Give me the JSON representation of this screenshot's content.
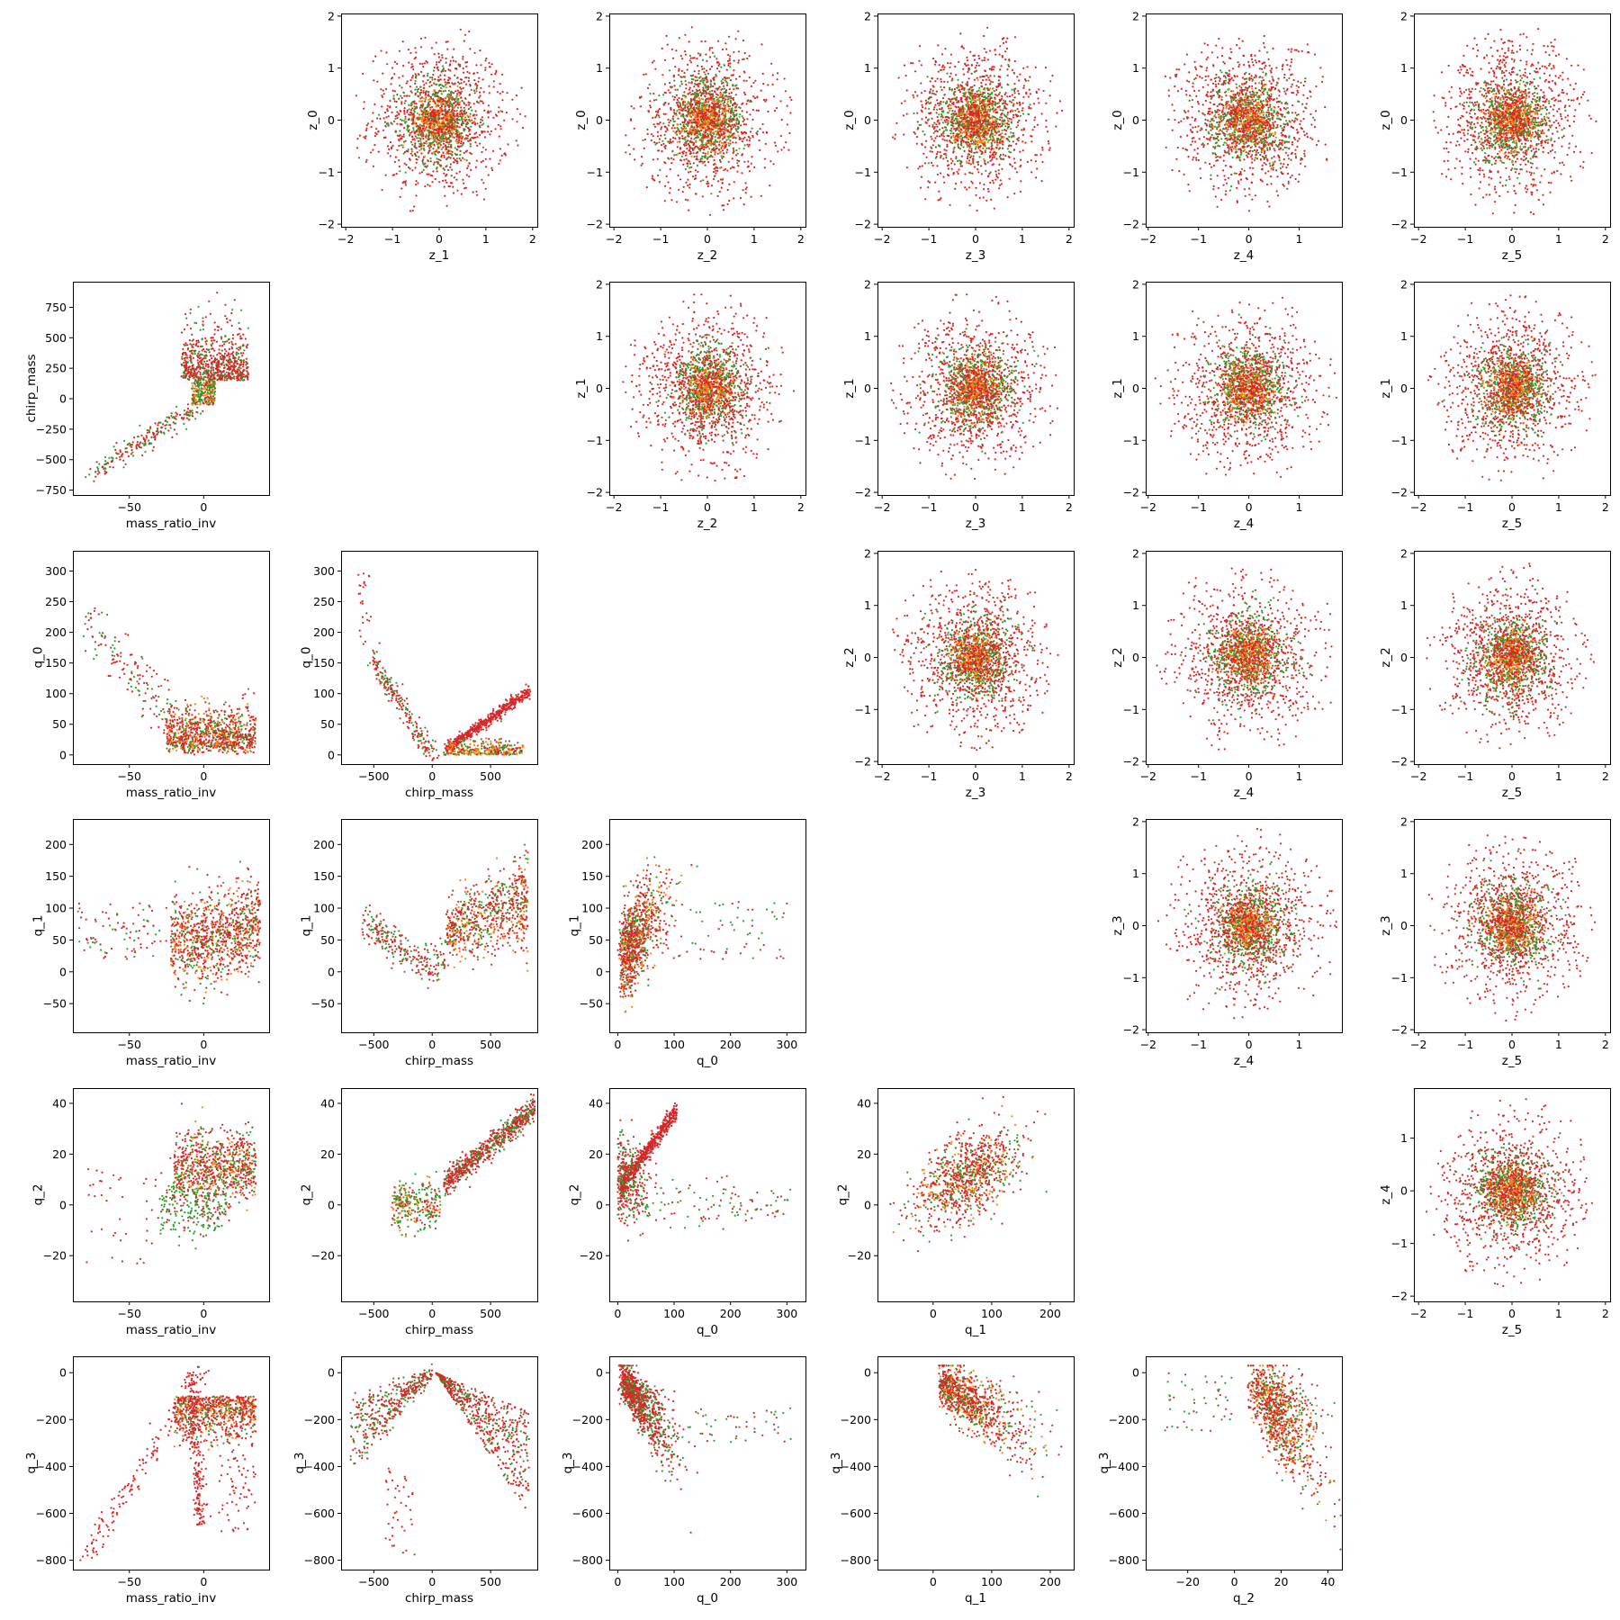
{
  "chart_data": [
    {
      "type": "scatter",
      "row": 0,
      "col": 1,
      "xlabel": "z_1",
      "ylabel": "z_0",
      "xlim": [
        -2.1,
        2.1
      ],
      "ylim": [
        -2.05,
        2.05
      ],
      "xticks": [
        -2,
        -1,
        0,
        1,
        2
      ],
      "yticks": [
        -2,
        -1,
        0,
        1,
        2
      ],
      "pattern": "gauss",
      "sx": 0.75,
      "sy": 0.75
    },
    {
      "type": "scatter",
      "row": 0,
      "col": 2,
      "xlabel": "z_2",
      "ylabel": "z_0",
      "xlim": [
        -2.1,
        2.1
      ],
      "ylim": [
        -2.05,
        2.05
      ],
      "xticks": [
        -2,
        -1,
        0,
        1,
        2
      ],
      "yticks": [
        -2,
        -1,
        0,
        1,
        2
      ],
      "pattern": "gauss",
      "sx": 0.75,
      "sy": 0.75
    },
    {
      "type": "scatter",
      "row": 0,
      "col": 3,
      "xlabel": "z_3",
      "ylabel": "z_0",
      "xlim": [
        -2.1,
        2.1
      ],
      "ylim": [
        -2.05,
        2.05
      ],
      "xticks": [
        -2,
        -1,
        0,
        1,
        2
      ],
      "yticks": [
        -2,
        -1,
        0,
        1,
        2
      ],
      "pattern": "gauss",
      "sx": 0.75,
      "sy": 0.75
    },
    {
      "type": "scatter",
      "row": 0,
      "col": 4,
      "xlabel": "z_4",
      "ylabel": "z_0",
      "xlim": [
        -2.05,
        1.85
      ],
      "ylim": [
        -2.05,
        2.05
      ],
      "xticks": [
        -2,
        -1,
        0,
        1
      ],
      "yticks": [
        -2,
        -1,
        0,
        1,
        2
      ],
      "pattern": "gauss",
      "sx": 0.72,
      "sy": 0.75
    },
    {
      "type": "scatter",
      "row": 0,
      "col": 5,
      "xlabel": "z_5",
      "ylabel": "z_0",
      "xlim": [
        -2.1,
        2.1
      ],
      "ylim": [
        -2.05,
        2.05
      ],
      "xticks": [
        -2,
        -1,
        0,
        1,
        2
      ],
      "yticks": [
        -2,
        -1,
        0,
        1,
        2
      ],
      "pattern": "gauss",
      "sx": 0.75,
      "sy": 0.75
    },
    {
      "type": "scatter",
      "row": 1,
      "col": 0,
      "xlabel": "mass_ratio_inv",
      "ylabel": "chirp_mass",
      "xlim": [
        -88,
        44
      ],
      "ylim": [
        -790,
        960
      ],
      "xticks": [
        -50,
        0
      ],
      "yticks": [
        -750,
        -500,
        -250,
        0,
        250,
        500,
        750
      ],
      "pattern": "chirp_vs_mri"
    },
    {
      "type": "scatter",
      "row": 1,
      "col": 2,
      "xlabel": "z_2",
      "ylabel": "z_1",
      "xlim": [
        -2.1,
        2.1
      ],
      "ylim": [
        -2.05,
        2.05
      ],
      "xticks": [
        -2,
        -1,
        0,
        1,
        2
      ],
      "yticks": [
        -2,
        -1,
        0,
        1,
        2
      ],
      "pattern": "gauss",
      "sx": 0.75,
      "sy": 0.75
    },
    {
      "type": "scatter",
      "row": 1,
      "col": 3,
      "xlabel": "z_3",
      "ylabel": "z_1",
      "xlim": [
        -2.1,
        2.1
      ],
      "ylim": [
        -2.05,
        2.05
      ],
      "xticks": [
        -2,
        -1,
        0,
        1,
        2
      ],
      "yticks": [
        -2,
        -1,
        0,
        1,
        2
      ],
      "pattern": "gauss",
      "sx": 0.75,
      "sy": 0.75
    },
    {
      "type": "scatter",
      "row": 1,
      "col": 4,
      "xlabel": "z_4",
      "ylabel": "z_1",
      "xlim": [
        -2.05,
        1.85
      ],
      "ylim": [
        -2.05,
        2.05
      ],
      "xticks": [
        -2,
        -1,
        0,
        1
      ],
      "yticks": [
        -2,
        -1,
        0,
        1,
        2
      ],
      "pattern": "gauss",
      "sx": 0.72,
      "sy": 0.75
    },
    {
      "type": "scatter",
      "row": 1,
      "col": 5,
      "xlabel": "z_5",
      "ylabel": "z_1",
      "xlim": [
        -2.1,
        2.1
      ],
      "ylim": [
        -2.05,
        2.05
      ],
      "xticks": [
        -2,
        -1,
        0,
        1,
        2
      ],
      "yticks": [
        -2,
        -1,
        0,
        1,
        2
      ],
      "pattern": "gauss",
      "sx": 0.75,
      "sy": 0.75
    },
    {
      "type": "scatter",
      "row": 2,
      "col": 0,
      "xlabel": "mass_ratio_inv",
      "ylabel": "q_0",
      "xlim": [
        -88,
        44
      ],
      "ylim": [
        -15,
        333
      ],
      "xticks": [
        -50,
        0
      ],
      "yticks": [
        0,
        50,
        100,
        150,
        200,
        250,
        300
      ],
      "pattern": "q0_vs_mri"
    },
    {
      "type": "scatter",
      "row": 2,
      "col": 1,
      "xlabel": "chirp_mass",
      "ylabel": "q_0",
      "xlim": [
        -780,
        900
      ],
      "ylim": [
        -15,
        333
      ],
      "xticks": [
        -500,
        0,
        500
      ],
      "yticks": [
        0,
        50,
        100,
        150,
        200,
        250,
        300
      ],
      "pattern": "q0_vs_chirp"
    },
    {
      "type": "scatter",
      "row": 2,
      "col": 3,
      "xlabel": "z_3",
      "ylabel": "z_2",
      "xlim": [
        -2.1,
        2.1
      ],
      "ylim": [
        -2.05,
        2.05
      ],
      "xticks": [
        -2,
        -1,
        0,
        1,
        2
      ],
      "yticks": [
        -2,
        -1,
        0,
        1,
        2
      ],
      "pattern": "gauss",
      "sx": 0.75,
      "sy": 0.75
    },
    {
      "type": "scatter",
      "row": 2,
      "col": 4,
      "xlabel": "z_4",
      "ylabel": "z_2",
      "xlim": [
        -2.05,
        1.85
      ],
      "ylim": [
        -2.05,
        2.05
      ],
      "xticks": [
        -2,
        -1,
        0,
        1
      ],
      "yticks": [
        -2,
        -1,
        0,
        1,
        2
      ],
      "pattern": "gauss",
      "sx": 0.72,
      "sy": 0.75
    },
    {
      "type": "scatter",
      "row": 2,
      "col": 5,
      "xlabel": "z_5",
      "ylabel": "z_2",
      "xlim": [
        -2.1,
        2.1
      ],
      "ylim": [
        -2.05,
        2.05
      ],
      "xticks": [
        -2,
        -1,
        0,
        1,
        2
      ],
      "yticks": [
        -2,
        -1,
        0,
        1,
        2
      ],
      "pattern": "gauss",
      "sx": 0.75,
      "sy": 0.75
    },
    {
      "type": "scatter",
      "row": 3,
      "col": 0,
      "xlabel": "mass_ratio_inv",
      "ylabel": "q_1",
      "xlim": [
        -88,
        44
      ],
      "ylim": [
        -95,
        240
      ],
      "xticks": [
        -50,
        0
      ],
      "yticks": [
        -50,
        0,
        50,
        100,
        150,
        200
      ],
      "pattern": "q1_vs_mri"
    },
    {
      "type": "scatter",
      "row": 3,
      "col": 1,
      "xlabel": "chirp_mass",
      "ylabel": "q_1",
      "xlim": [
        -780,
        900
      ],
      "ylim": [
        -95,
        240
      ],
      "xticks": [
        -500,
        0,
        500
      ],
      "yticks": [
        -50,
        0,
        50,
        100,
        150,
        200
      ],
      "pattern": "q1_vs_chirp"
    },
    {
      "type": "scatter",
      "row": 3,
      "col": 2,
      "xlabel": "q_0",
      "ylabel": "q_1",
      "xlim": [
        -15,
        333
      ],
      "ylim": [
        -95,
        240
      ],
      "xticks": [
        0,
        100,
        200,
        300
      ],
      "yticks": [
        -50,
        0,
        50,
        100,
        150,
        200
      ],
      "pattern": "q1_vs_q0"
    },
    {
      "type": "scatter",
      "row": 3,
      "col": 4,
      "xlabel": "z_4",
      "ylabel": "z_3",
      "xlim": [
        -2.05,
        1.85
      ],
      "ylim": [
        -2.05,
        2.05
      ],
      "xticks": [
        -2,
        -1,
        0,
        1
      ],
      "yticks": [
        -2,
        -1,
        0,
        1,
        2
      ],
      "pattern": "gauss",
      "sx": 0.72,
      "sy": 0.75
    },
    {
      "type": "scatter",
      "row": 3,
      "col": 5,
      "xlabel": "z_5",
      "ylabel": "z_3",
      "xlim": [
        -2.1,
        2.1
      ],
      "ylim": [
        -2.05,
        2.05
      ],
      "xticks": [
        -2,
        -1,
        0,
        1,
        2
      ],
      "yticks": [
        -2,
        -1,
        0,
        1,
        2
      ],
      "pattern": "gauss",
      "sx": 0.75,
      "sy": 0.75
    },
    {
      "type": "scatter",
      "row": 4,
      "col": 0,
      "xlabel": "mass_ratio_inv",
      "ylabel": "q_2",
      "xlim": [
        -88,
        44
      ],
      "ylim": [
        -38,
        46
      ],
      "xticks": [
        -50,
        0
      ],
      "yticks": [
        -20,
        0,
        20,
        40
      ],
      "pattern": "q2_vs_mri"
    },
    {
      "type": "scatter",
      "row": 4,
      "col": 1,
      "xlabel": "chirp_mass",
      "ylabel": "q_2",
      "xlim": [
        -780,
        900
      ],
      "ylim": [
        -38,
        46
      ],
      "xticks": [
        -500,
        0,
        500
      ],
      "yticks": [
        -20,
        0,
        20,
        40
      ],
      "pattern": "q2_vs_chirp"
    },
    {
      "type": "scatter",
      "row": 4,
      "col": 2,
      "xlabel": "q_0",
      "ylabel": "q_2",
      "xlim": [
        -15,
        333
      ],
      "ylim": [
        -38,
        46
      ],
      "xticks": [
        0,
        100,
        200,
        300
      ],
      "yticks": [
        -20,
        0,
        20,
        40
      ],
      "pattern": "q2_vs_q0"
    },
    {
      "type": "scatter",
      "row": 4,
      "col": 3,
      "xlabel": "q_1",
      "ylabel": "q_2",
      "xlim": [
        -95,
        240
      ],
      "ylim": [
        -38,
        46
      ],
      "xticks": [
        0,
        100,
        200
      ],
      "yticks": [
        -20,
        0,
        20,
        40
      ],
      "pattern": "q2_vs_q1"
    },
    {
      "type": "scatter",
      "row": 4,
      "col": 5,
      "xlabel": "z_5",
      "ylabel": "z_4",
      "xlim": [
        -2.1,
        2.1
      ],
      "ylim": [
        -2.1,
        1.95
      ],
      "xticks": [
        -2,
        -1,
        0,
        1,
        2
      ],
      "yticks": [
        -2,
        -1,
        0,
        1
      ],
      "pattern": "gauss",
      "sx": 0.75,
      "sy": 0.72
    },
    {
      "type": "scatter",
      "row": 5,
      "col": 0,
      "xlabel": "mass_ratio_inv",
      "ylabel": "q_3",
      "xlim": [
        -88,
        44
      ],
      "ylim": [
        -840,
        70
      ],
      "xticks": [
        -50,
        0
      ],
      "yticks": [
        -800,
        -600,
        -400,
        -200,
        0
      ],
      "pattern": "q3_vs_mri"
    },
    {
      "type": "scatter",
      "row": 5,
      "col": 1,
      "xlabel": "chirp_mass",
      "ylabel": "q_3",
      "xlim": [
        -780,
        900
      ],
      "ylim": [
        -840,
        70
      ],
      "xticks": [
        -500,
        0,
        500
      ],
      "yticks": [
        -800,
        -600,
        -400,
        -200,
        0
      ],
      "pattern": "q3_vs_chirp"
    },
    {
      "type": "scatter",
      "row": 5,
      "col": 2,
      "xlabel": "q_0",
      "ylabel": "q_3",
      "xlim": [
        -15,
        333
      ],
      "ylim": [
        -840,
        70
      ],
      "xticks": [
        0,
        100,
        200,
        300
      ],
      "yticks": [
        -800,
        -600,
        -400,
        -200,
        0
      ],
      "pattern": "q3_vs_q0"
    },
    {
      "type": "scatter",
      "row": 5,
      "col": 3,
      "xlabel": "q_1",
      "ylabel": "q_3",
      "xlim": [
        -95,
        240
      ],
      "ylim": [
        -840,
        70
      ],
      "xticks": [
        0,
        100,
        200
      ],
      "yticks": [
        -800,
        -600,
        -400,
        -200,
        0
      ],
      "pattern": "q3_vs_q1"
    },
    {
      "type": "scatter",
      "row": 5,
      "col": 4,
      "xlabel": "q_2",
      "ylabel": "q_3",
      "xlim": [
        -38,
        46
      ],
      "ylim": [
        -840,
        70
      ],
      "xticks": [
        -20,
        0,
        20,
        40
      ],
      "yticks": [
        -800,
        -600,
        -400,
        -200,
        0
      ],
      "pattern": "q3_vs_q2"
    }
  ],
  "series_colors": {
    "red": "#d62728",
    "green": "#2ca02c",
    "orange": "#ff7f0e"
  },
  "grid": false,
  "legend": "none"
}
